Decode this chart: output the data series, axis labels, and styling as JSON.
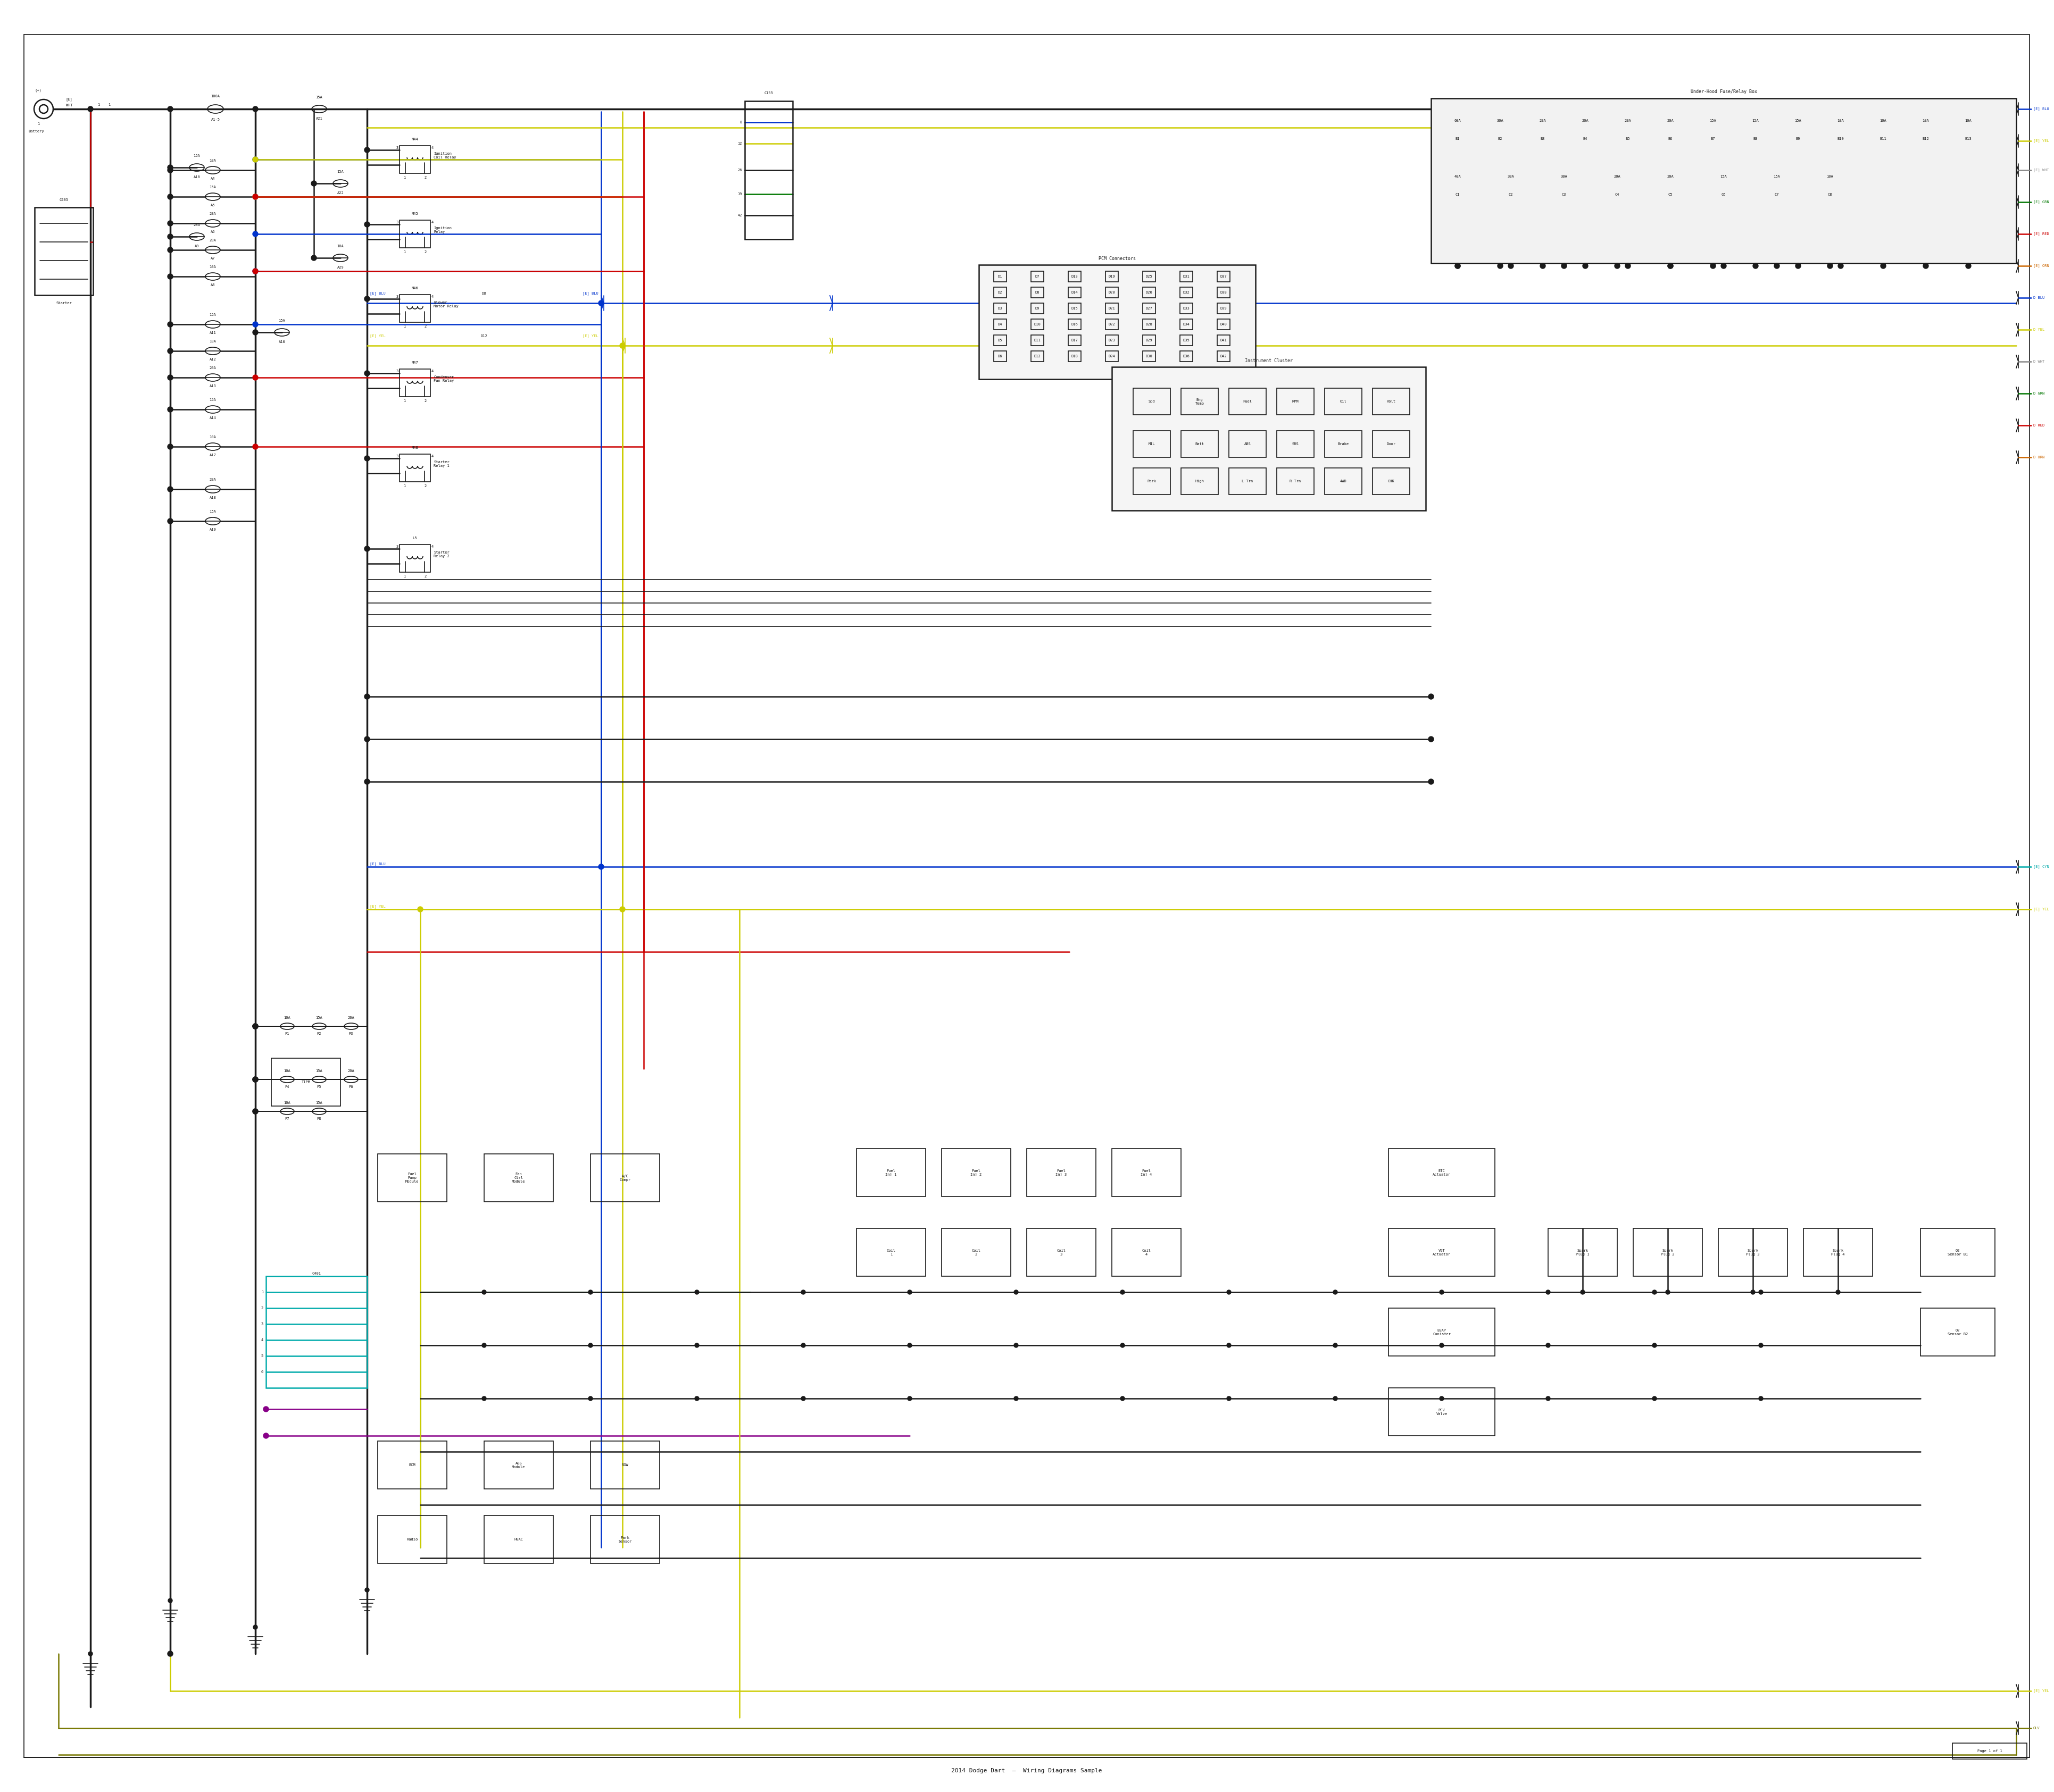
{
  "bg_color": "#ffffff",
  "line_color_black": "#1a1a1a",
  "line_color_red": "#cc0000",
  "line_color_blue": "#0033cc",
  "line_color_yellow": "#cccc00",
  "line_color_green": "#007700",
  "line_color_cyan": "#00aaaa",
  "line_color_purple": "#880088",
  "line_color_gray": "#888888",
  "line_color_olive": "#777700",
  "text_color": "#111111",
  "lw_main": 2.5,
  "lw_wire": 1.8,
  "lw_thin": 1.2,
  "font_size_label": 7,
  "font_size_small": 6,
  "font_size_tiny": 5
}
